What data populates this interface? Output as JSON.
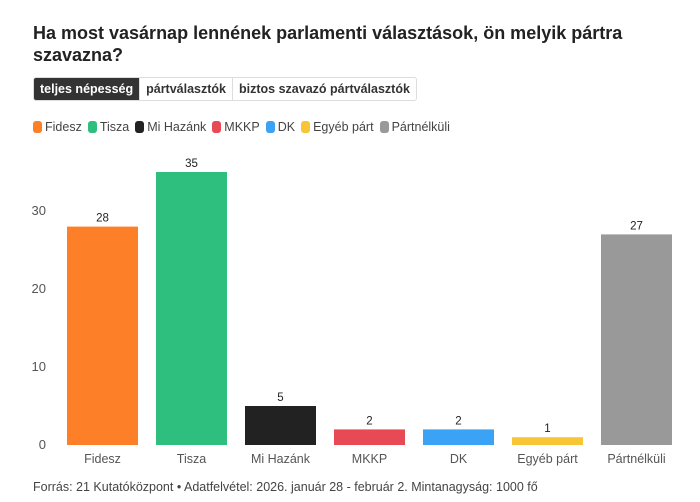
{
  "title": "Ha most vasárnap lennének parlamenti választások, ön melyik pártra szavazna?",
  "tabs": [
    {
      "label": "teljes népesség",
      "active": true
    },
    {
      "label": "pártválasztók",
      "active": false
    },
    {
      "label": "biztos szavazó pártválasztók",
      "active": false
    }
  ],
  "source": "Forrás: 21 Kutatóközpont • Adatfelvétel: 2026. január 28 - február 2. Mintanagyság: 1000 fő",
  "chart_data": {
    "type": "bar",
    "categories": [
      "Fidesz",
      "Tisza",
      "Mi Hazánk",
      "MKKP",
      "DK",
      "Egyéb párt",
      "Pártnélküli"
    ],
    "values": [
      28,
      35,
      5,
      2,
      2,
      1,
      27
    ],
    "colors": [
      "#fd7f28",
      "#2ebe7e",
      "#222222",
      "#e84a55",
      "#3aa3f5",
      "#f8c537",
      "#999999"
    ],
    "yticks": [
      0,
      10,
      20,
      30
    ],
    "ylim": [
      0,
      38
    ],
    "legend": "top-left",
    "grid": false
  }
}
